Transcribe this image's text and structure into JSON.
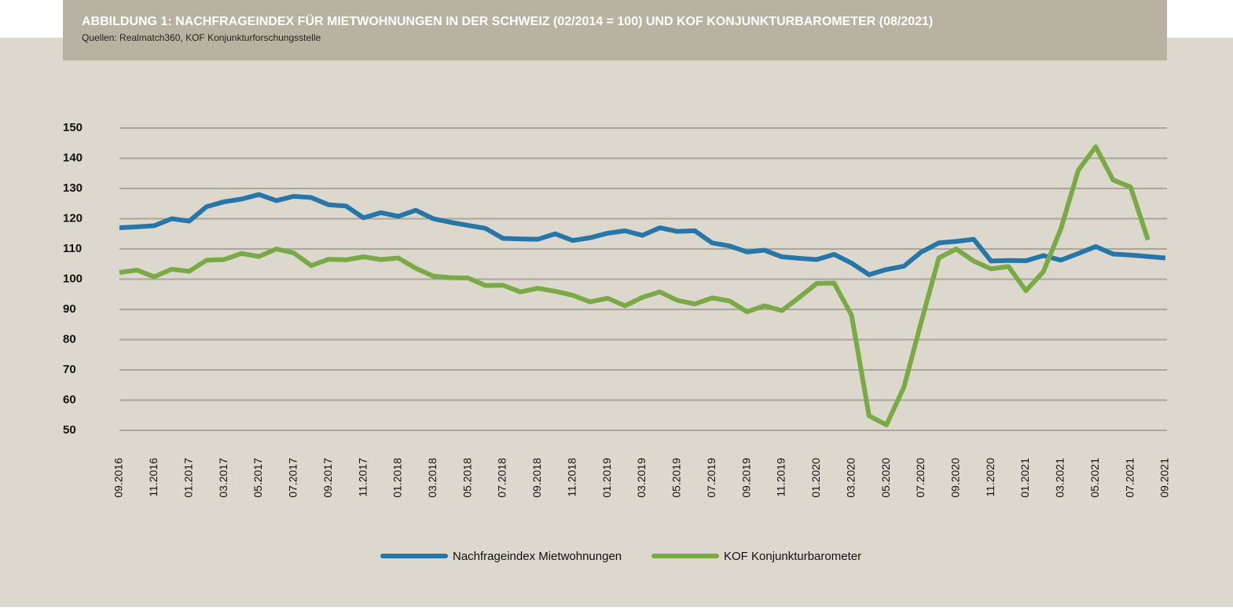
{
  "chart_data": {
    "type": "line",
    "title": "ABBILDUNG 1: NACHFRAGEINDEX FÜR MIETWOHNUNGEN IN DER SCHWEIZ (02/2014 = 100) UND KOF KONJUNKTURBAROMETER (08/2021)",
    "subtitle": "Quellen: Realmatch360, KOF Konjunkturforschungsstelle",
    "categories": [
      "09.2016",
      null,
      "11.2016",
      null,
      "01.2017",
      null,
      "03.2017",
      null,
      "05.2017",
      null,
      "07.2017",
      null,
      "09.2017",
      null,
      "11.2017",
      null,
      "01.2018",
      null,
      "03.2018",
      null,
      "05.2018",
      null,
      "07.2018",
      null,
      "09.2018",
      null,
      "11.2018",
      null,
      "01.2019",
      null,
      "03.2019",
      null,
      "05.2019",
      null,
      "07.2019",
      null,
      "09.2019",
      null,
      "11.2019",
      null,
      "01.2020",
      null,
      "03.2020",
      null,
      "05.2020",
      null,
      "07.2020",
      null,
      "09.2020",
      null,
      "11.2020",
      null,
      "01.2021",
      null,
      "03.2021",
      null,
      "05.2021",
      null,
      "07.2021",
      null,
      "09.2021"
    ],
    "series": [
      {
        "name": "Nachfrageindex Mietwohnungen",
        "color": "#2676a8",
        "values": [
          117,
          117.3,
          117.7,
          120,
          119.2,
          124,
          125.6,
          126.5,
          128,
          126,
          127.4,
          127,
          124.6,
          124.2,
          120.3,
          122,
          120.8,
          122.8,
          120,
          118.8,
          117.8,
          116.8,
          113.5,
          113.3,
          113.2,
          115,
          112.8,
          113.7,
          115.2,
          116,
          114.5,
          117,
          115.8,
          116,
          112,
          111,
          109,
          109.6,
          107.4,
          106.9,
          106.5,
          108.2,
          105.3,
          101.5,
          103.2,
          104.3,
          109,
          112,
          112.5,
          113.2,
          106,
          106.2,
          106.1,
          107.8,
          106.3,
          108.5,
          110.8,
          108.3,
          108,
          107.5,
          107
        ]
      },
      {
        "name": "KOF Konjunkturbarometer",
        "color": "#7aaa45",
        "values": [
          102.2,
          103,
          100.8,
          103.3,
          102.6,
          106.3,
          106.5,
          108.5,
          107.5,
          110,
          108.7,
          104.5,
          106.6,
          106.4,
          107.4,
          106.5,
          107,
          103.6,
          101,
          100.5,
          100.4,
          97.9,
          98,
          95.8,
          97,
          96,
          94.7,
          92.5,
          93.7,
          91.2,
          94,
          95.8,
          93,
          91.8,
          93.8,
          92.8,
          89.2,
          91.2,
          89.6,
          94,
          98.6,
          98.7,
          88,
          54.8,
          51.8,
          64.3,
          86,
          107,
          110,
          106,
          103.4,
          104.2,
          96.2,
          102.5,
          116.6,
          136,
          143.8,
          132.8,
          130.5,
          113,
          null
        ]
      }
    ],
    "ylim": [
      50,
      150
    ],
    "yticks": [
      50,
      60,
      70,
      80,
      90,
      100,
      110,
      120,
      130,
      140,
      150
    ],
    "grid": true
  }
}
